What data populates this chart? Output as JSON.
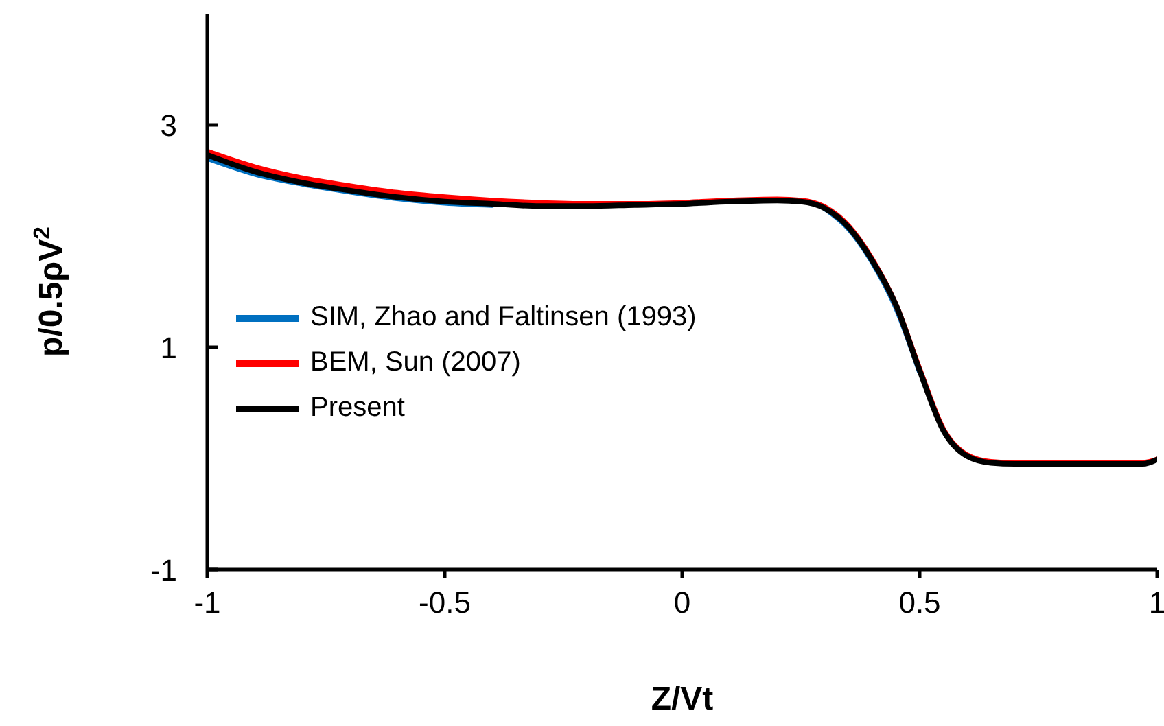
{
  "chart_data": {
    "type": "line",
    "xlabel": "Z/Vt",
    "ylabel": "p/0.5ρV$^{2}$",
    "x": [
      -1,
      -0.9,
      -0.8,
      -0.7,
      -0.6,
      -0.5,
      -0.4,
      -0.3,
      -0.2,
      -0.1,
      0,
      0.1,
      0.2,
      0.25,
      0.3,
      0.35,
      0.4,
      0.45,
      0.5,
      0.55,
      0.6,
      0.65,
      0.7,
      0.8,
      0.9,
      0.97,
      1
    ],
    "series": [
      {
        "name": "SIM, Zhao and Faltinsen (1993)",
        "color": "#0070c0",
        "values": [
          2.7,
          2.56,
          2.47,
          2.4,
          2.34,
          2.3,
          2.28,
          null,
          null,
          null,
          null,
          null,
          null,
          null,
          2.25,
          2.07,
          1.77,
          1.36,
          0.78,
          null,
          null,
          null,
          null,
          null,
          null,
          null,
          null
        ]
      },
      {
        "name": "BEM, Sun (2007)",
        "color": "#ff0000",
        "values": [
          2.76,
          2.62,
          2.52,
          2.45,
          2.39,
          2.35,
          2.32,
          2.3,
          2.29,
          2.29,
          2.3,
          2.32,
          2.33,
          2.32,
          2.26,
          2.09,
          1.79,
          1.38,
          0.8,
          0.26,
          0.03,
          -0.03,
          -0.04,
          -0.04,
          -0.04,
          -0.04,
          -0.01
        ]
      },
      {
        "name": "Present",
        "color": "#000000",
        "values": [
          2.73,
          2.58,
          2.48,
          2.41,
          2.35,
          2.31,
          2.29,
          2.27,
          2.27,
          2.28,
          2.29,
          2.31,
          2.32,
          2.31,
          2.25,
          2.08,
          1.78,
          1.38,
          0.79,
          0.25,
          0.02,
          -0.04,
          -0.05,
          -0.05,
          -0.05,
          -0.05,
          -0.01
        ]
      }
    ],
    "xlim": [
      -1,
      1
    ],
    "xticks": [
      -1,
      -0.5,
      0,
      0.5,
      1
    ],
    "ylim": [
      -1,
      4
    ],
    "yticks": [
      -1,
      1,
      3
    ],
    "grid": false,
    "legend": "left",
    "marker": "none",
    "line_style": "solid"
  }
}
